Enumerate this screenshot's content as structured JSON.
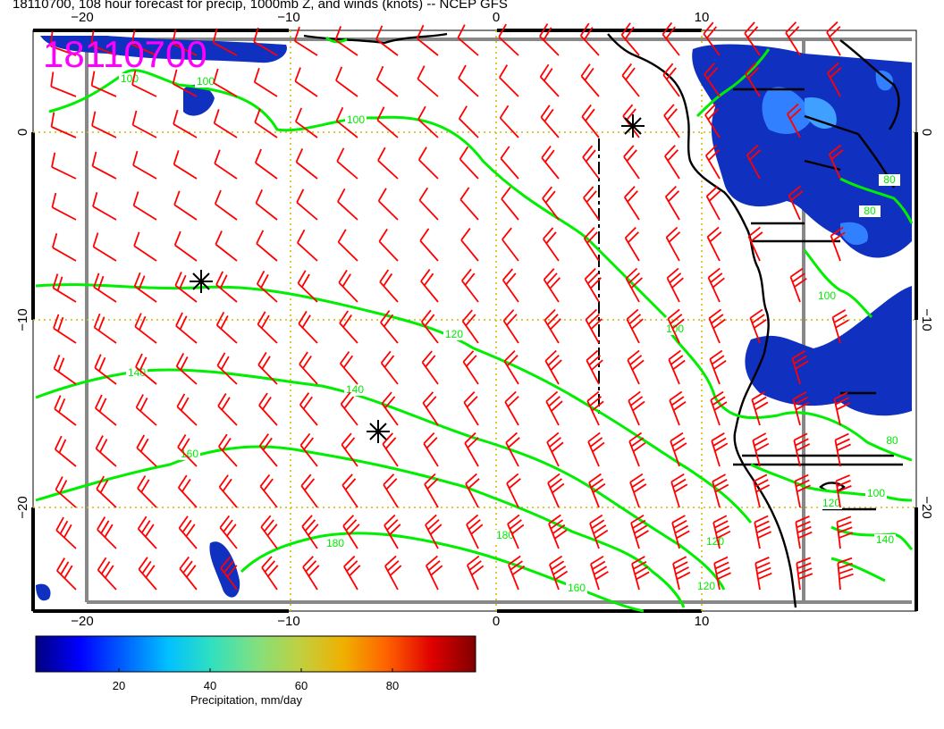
{
  "title": "18110700, 108 hour forecast for precip, 1000mb Z, and winds (knots) -- NCEP GFS",
  "stamp": "18110700",
  "axes": {
    "lon_ticks": [
      "−20",
      "−10",
      "0",
      "10"
    ],
    "lat_ticks": [
      "0",
      "−10",
      "−20"
    ]
  },
  "contours": {
    "color": "#00ee00",
    "labels": [
      "100",
      "100",
      "100",
      "120",
      "140",
      "140",
      "160",
      "180",
      "180",
      "160",
      "120",
      "120",
      "100",
      "80",
      "80",
      "100",
      "80",
      "100",
      "120",
      "140"
    ]
  },
  "wind_barbs": {
    "color": "#ff0000"
  },
  "cyclone_markers": 3,
  "colorbar": {
    "label": "Precipitation, mm/day",
    "ticks": [
      "20",
      "40",
      "60",
      "80"
    ],
    "colors": [
      "#00007f",
      "#0000ff",
      "#0060ff",
      "#00c0ff",
      "#30e0c0",
      "#80e080",
      "#c0d040",
      "#f0b000",
      "#ff6000",
      "#e00000",
      "#7f0000"
    ]
  }
}
